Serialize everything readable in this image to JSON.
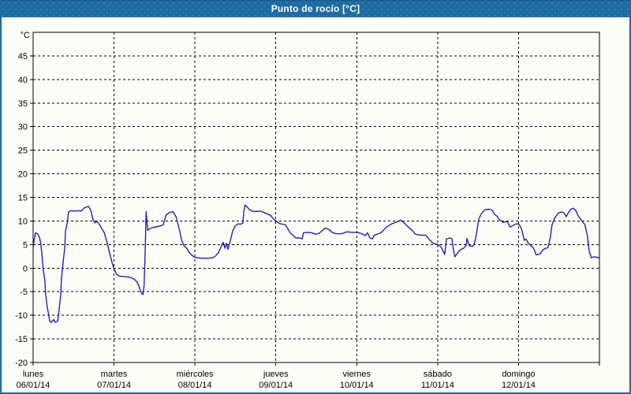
{
  "window": {
    "title": "Punto de rocío [°C]"
  },
  "colors": {
    "frame": "#1d6ba3",
    "titlebar_bg": "#1d6ba3",
    "title_text": "#ffffff",
    "panel_bg": "#fdfdf8",
    "grid": "#000000",
    "axis": "#000000",
    "tick_text": "#000000",
    "line": "#2121b4"
  },
  "chart_data": {
    "type": "line",
    "title": "Punto de rocío [°C]",
    "ylabel": "°C",
    "unit": "°C",
    "ylim": [
      -20,
      50
    ],
    "y_ticks": [
      45,
      40,
      35,
      30,
      25,
      20,
      15,
      10,
      5,
      0,
      -5,
      -10,
      -15,
      -20
    ],
    "x_range_hours": [
      0,
      168
    ],
    "x_day_step_hours": 24,
    "grid": "dashed",
    "legend": "none",
    "x_days": [
      {
        "name": "lunes",
        "date": "06/01/14"
      },
      {
        "name": "martes",
        "date": "07/01/14"
      },
      {
        "name": "miércoles",
        "date": "08/01/14"
      },
      {
        "name": "jueves",
        "date": "09/01/14"
      },
      {
        "name": "viernes",
        "date": "10/01/14"
      },
      {
        "name": "sábado",
        "date": "11/01/14"
      },
      {
        "name": "domingo",
        "date": "12/01/14"
      }
    ],
    "series": [
      {
        "name": "Punto de rocío",
        "color": "#2121b4",
        "points": [
          [
            0,
            4.2
          ],
          [
            0.3,
            6.0
          ],
          [
            0.7,
            7.5
          ],
          [
            1.3,
            7.3
          ],
          [
            1.9,
            6.5
          ],
          [
            2.3,
            5.1
          ],
          [
            2.6,
            3.0
          ],
          [
            3.0,
            -0.3
          ],
          [
            3.5,
            -2.8
          ],
          [
            3.7,
            -5.5
          ],
          [
            4.2,
            -8.4
          ],
          [
            4.7,
            -10.2
          ],
          [
            4.9,
            -11.2
          ],
          [
            5.4,
            -11.5
          ],
          [
            6.1,
            -10.9
          ],
          [
            6.6,
            -11.5
          ],
          [
            7.3,
            -11.2
          ],
          [
            7.7,
            -8.9
          ],
          [
            8.2,
            -5.5
          ],
          [
            8.4,
            -2.2
          ],
          [
            8.9,
            1.2
          ],
          [
            9.4,
            4.5
          ],
          [
            9.6,
            7.9
          ],
          [
            10.1,
            9.5
          ],
          [
            10.5,
            11.9
          ],
          [
            11.2,
            12.2
          ],
          [
            12.4,
            12.1
          ],
          [
            13.6,
            12.2
          ],
          [
            14.3,
            12.1
          ],
          [
            15.2,
            12.8
          ],
          [
            16.4,
            13.1
          ],
          [
            17.1,
            12.3
          ],
          [
            17.8,
            10.2
          ],
          [
            18.3,
            9.6
          ],
          [
            19.0,
            9.9
          ],
          [
            19.6,
            9.3
          ],
          [
            20.1,
            8.7
          ],
          [
            21.1,
            7.5
          ],
          [
            21.8,
            5.8
          ],
          [
            22.5,
            3.7
          ],
          [
            23.4,
            1.2
          ],
          [
            24.0,
            -0.2
          ],
          [
            24.8,
            -1.3
          ],
          [
            25.7,
            -1.7
          ],
          [
            27.2,
            -1.8
          ],
          [
            28.5,
            -1.9
          ],
          [
            29.3,
            -2.1
          ],
          [
            30.1,
            -2.4
          ],
          [
            30.8,
            -2.9
          ],
          [
            31.3,
            -3.7
          ],
          [
            31.8,
            -4.7
          ],
          [
            32.2,
            -5.4
          ],
          [
            32.6,
            -5.6
          ],
          [
            32.9,
            -3.9
          ],
          [
            33.1,
            0.5
          ],
          [
            33.3,
            5.0
          ],
          [
            33.5,
            12.0
          ],
          [
            34.0,
            8.0
          ],
          [
            34.6,
            8.4
          ],
          [
            36.0,
            8.7
          ],
          [
            37.5,
            8.9
          ],
          [
            38.6,
            9.2
          ],
          [
            39.4,
            11.2
          ],
          [
            40.2,
            11.7
          ],
          [
            40.9,
            11.9
          ],
          [
            41.5,
            12.0
          ],
          [
            42.4,
            10.9
          ],
          [
            43.3,
            8.4
          ],
          [
            44.1,
            5.8
          ],
          [
            44.8,
            4.7
          ],
          [
            45.6,
            4.2
          ],
          [
            46.3,
            3.3
          ],
          [
            47.3,
            2.6
          ],
          [
            48.5,
            2.2
          ],
          [
            50.0,
            2.1
          ],
          [
            52.0,
            2.1
          ],
          [
            53.3,
            2.2
          ],
          [
            54.0,
            2.5
          ],
          [
            55.0,
            3.3
          ],
          [
            55.7,
            4.5
          ],
          [
            56.4,
            5.5
          ],
          [
            56.9,
            4.2
          ],
          [
            57.3,
            5.3
          ],
          [
            57.8,
            4.0
          ],
          [
            58.5,
            5.8
          ],
          [
            59.2,
            7.9
          ],
          [
            59.9,
            8.9
          ],
          [
            60.8,
            9.4
          ],
          [
            61.5,
            9.3
          ],
          [
            62.2,
            9.5
          ],
          [
            62.5,
            12.0
          ],
          [
            62.9,
            13.4
          ],
          [
            63.6,
            12.9
          ],
          [
            64.3,
            12.3
          ],
          [
            65.5,
            12.0
          ],
          [
            67.4,
            12.1
          ],
          [
            68.5,
            11.8
          ],
          [
            70.4,
            11.2
          ],
          [
            71.3,
            10.4
          ],
          [
            72.5,
            9.7
          ],
          [
            73.4,
            9.4
          ],
          [
            74.8,
            9.2
          ],
          [
            75.5,
            8.4
          ],
          [
            76.2,
            7.5
          ],
          [
            77.2,
            6.9
          ],
          [
            77.9,
            6.4
          ],
          [
            79.1,
            6.4
          ],
          [
            79.8,
            6.2
          ],
          [
            80.2,
            7.5
          ],
          [
            81.4,
            7.6
          ],
          [
            82.6,
            7.5
          ],
          [
            83.8,
            7.2
          ],
          [
            84.9,
            7.4
          ],
          [
            86.1,
            8.2
          ],
          [
            86.8,
            8.5
          ],
          [
            87.7,
            8.2
          ],
          [
            88.9,
            7.5
          ],
          [
            90.0,
            7.3
          ],
          [
            91.5,
            7.3
          ],
          [
            93.1,
            7.7
          ],
          [
            94.7,
            7.6
          ],
          [
            95.9,
            7.6
          ],
          [
            96.6,
            7.5
          ],
          [
            97.8,
            7.2
          ],
          [
            98.5,
            6.9
          ],
          [
            99.2,
            7.5
          ],
          [
            99.9,
            6.4
          ],
          [
            100.6,
            6.2
          ],
          [
            101.3,
            7.0
          ],
          [
            103.2,
            7.5
          ],
          [
            104.8,
            8.7
          ],
          [
            106.4,
            9.4
          ],
          [
            108.3,
            9.9
          ],
          [
            109.0,
            10.2
          ],
          [
            110.2,
            9.5
          ],
          [
            111.3,
            8.7
          ],
          [
            112.5,
            8.0
          ],
          [
            113.4,
            7.2
          ],
          [
            114.8,
            7.0
          ],
          [
            116.5,
            7.0
          ],
          [
            117.6,
            6.0
          ],
          [
            118.6,
            5.3
          ],
          [
            119.5,
            5.1
          ],
          [
            120.2,
            5.0
          ],
          [
            121.0,
            4.5
          ],
          [
            121.9,
            3.2
          ],
          [
            122.1,
            2.9
          ],
          [
            122.6,
            6.2
          ],
          [
            123.7,
            6.4
          ],
          [
            124.2,
            6.3
          ],
          [
            124.7,
            3.9
          ],
          [
            125.1,
            2.4
          ],
          [
            126.1,
            3.4
          ],
          [
            126.8,
            3.9
          ],
          [
            127.7,
            4.2
          ],
          [
            128.4,
            4.8
          ],
          [
            128.7,
            6.3
          ],
          [
            129.4,
            4.8
          ],
          [
            130.3,
            4.6
          ],
          [
            130.8,
            5.0
          ],
          [
            131.1,
            5.9
          ],
          [
            131.5,
            7.2
          ],
          [
            132.2,
            10.4
          ],
          [
            133.1,
            11.7
          ],
          [
            134.0,
            12.4
          ],
          [
            135.2,
            12.5
          ],
          [
            136.2,
            12.3
          ],
          [
            136.9,
            11.4
          ],
          [
            137.6,
            11.0
          ],
          [
            138.3,
            10.3
          ],
          [
            139.4,
            9.7
          ],
          [
            140.6,
            9.9
          ],
          [
            141.5,
            8.7
          ],
          [
            142.7,
            9.2
          ],
          [
            143.4,
            9.4
          ],
          [
            144.1,
            9.3
          ],
          [
            144.6,
            8.8
          ],
          [
            145.0,
            8.0
          ],
          [
            145.7,
            5.9
          ],
          [
            146.2,
            6.2
          ],
          [
            146.9,
            5.3
          ],
          [
            147.6,
            4.8
          ],
          [
            148.3,
            4.4
          ],
          [
            148.8,
            3.7
          ],
          [
            149.2,
            2.8
          ],
          [
            150.4,
            3.0
          ],
          [
            151.1,
            3.8
          ],
          [
            152.0,
            4.2
          ],
          [
            152.7,
            4.3
          ],
          [
            153.4,
            6.4
          ],
          [
            153.9,
            9.0
          ],
          [
            154.6,
            10.5
          ],
          [
            155.8,
            11.7
          ],
          [
            156.7,
            11.9
          ],
          [
            157.4,
            11.8
          ],
          [
            158.1,
            10.9
          ],
          [
            158.8,
            11.8
          ],
          [
            159.5,
            12.5
          ],
          [
            160.2,
            12.7
          ],
          [
            160.9,
            12.3
          ],
          [
            161.6,
            11.2
          ],
          [
            162.8,
            10.0
          ],
          [
            163.7,
            9.2
          ],
          [
            164.4,
            7.0
          ],
          [
            164.9,
            3.7
          ],
          [
            165.6,
            2.2
          ],
          [
            166.3,
            2.4
          ],
          [
            167.2,
            2.3
          ],
          [
            168.0,
            2.2
          ]
        ]
      }
    ]
  }
}
